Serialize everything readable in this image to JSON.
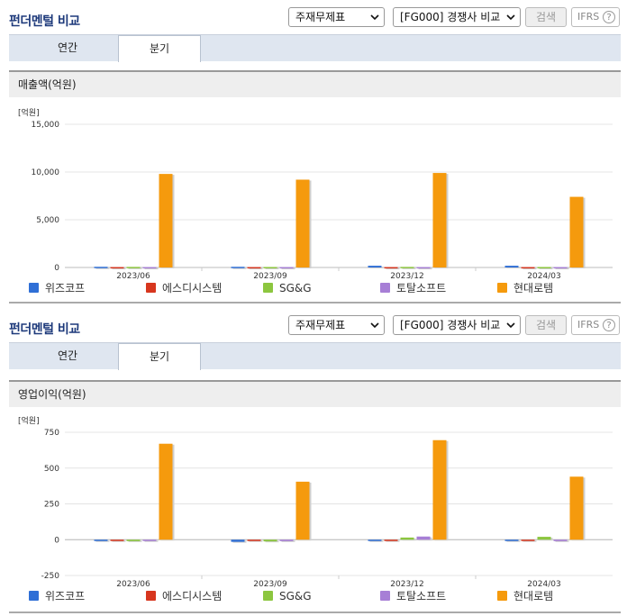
{
  "panels": [
    {
      "title": "펀더멘털 비교",
      "select1": "주재무제표",
      "select2": "[FG000] 경쟁사 비교",
      "search_label": "검색",
      "ifrs_label": "IFRS",
      "help_label": "?",
      "tabs": [
        "연간",
        "분기"
      ],
      "active_tab": "분기",
      "section_title": "매출액(억원)",
      "unit": "[억원]"
    },
    {
      "title": "펀더멘털 비교",
      "select1": "주재무제표",
      "select2": "[FG000] 경쟁사 비교",
      "search_label": "검색",
      "ifrs_label": "IFRS",
      "help_label": "?",
      "tabs": [
        "연간",
        "분기"
      ],
      "active_tab": "분기",
      "section_title": "영업이익(억원)",
      "unit": "[억원]"
    }
  ],
  "legend": [
    {
      "name": "위즈코프",
      "color": "#2f6fd6"
    },
    {
      "name": "에스디시스템",
      "color": "#d7361e"
    },
    {
      "name": "SG&G",
      "color": "#8cc63f"
    },
    {
      "name": "토탈소프트",
      "color": "#a77fd6"
    },
    {
      "name": "현대로템",
      "color": "#f59a0d"
    }
  ],
  "chart_data": [
    {
      "type": "bar",
      "title": "매출액(억원)",
      "ylabel": "[억원]",
      "categories": [
        "2023/06",
        "2023/09",
        "2023/12",
        "2024/03"
      ],
      "yticks": [
        "15,000",
        "10,000",
        "5,000",
        "0"
      ],
      "ylim": [
        0,
        15000
      ],
      "series": [
        {
          "name": "위즈코프",
          "values": [
            70,
            70,
            180,
            180
          ]
        },
        {
          "name": "에스디시스템",
          "values": [
            40,
            40,
            40,
            40
          ]
        },
        {
          "name": "SG&G",
          "values": [
            60,
            50,
            60,
            50
          ]
        },
        {
          "name": "토탈소프트",
          "values": [
            40,
            40,
            40,
            40
          ]
        },
        {
          "name": "현대로템",
          "values": [
            9800,
            9200,
            9900,
            7400
          ]
        }
      ]
    },
    {
      "type": "bar",
      "title": "영업이익(억원)",
      "ylabel": "[억원]",
      "categories": [
        "2023/06",
        "2023/09",
        "2023/12",
        "2024/03"
      ],
      "yticks": [
        "750",
        "500",
        "250",
        "0",
        "-250"
      ],
      "ylim": [
        -250,
        750
      ],
      "series": [
        {
          "name": "위즈코프",
          "values": [
            0,
            -15,
            -8,
            -8
          ]
        },
        {
          "name": "에스디시스템",
          "values": [
            -8,
            -2,
            -2,
            -2
          ]
        },
        {
          "name": "SG&G",
          "values": [
            -10,
            -12,
            15,
            20
          ]
        },
        {
          "name": "토탈소프트",
          "values": [
            -3,
            -10,
            22,
            -10
          ]
        },
        {
          "name": "현대로템",
          "values": [
            670,
            405,
            695,
            440
          ]
        }
      ]
    }
  ]
}
